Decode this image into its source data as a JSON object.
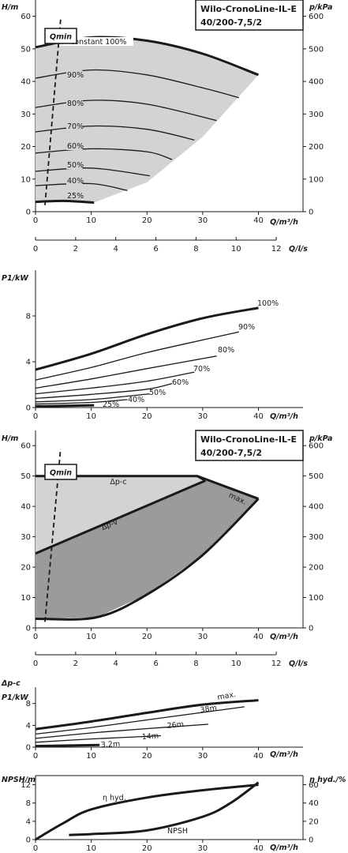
{
  "header": {
    "title_line1": "Wilo-CronoLine-IL-E",
    "title_line2": "40/200-7,5/2"
  },
  "qmin_label": "Qmin",
  "colors": {
    "fill_light": "#d3d3d3",
    "fill_dark": "#9b9b9b",
    "line": "#1a1a1a"
  },
  "chart_data": [
    {
      "type": "line",
      "ylabel": "H/m",
      "ylabel_right": "p/kPa",
      "xlabel": "Q/m³/h",
      "xlabel_secondary": "Q/l/s",
      "xlim": [
        0,
        48
      ],
      "ylim": [
        0,
        65
      ],
      "x_ticks": [
        "0",
        "10",
        "20",
        "30",
        "40"
      ],
      "y_ticks": [
        "0",
        "10",
        "20",
        "30",
        "40",
        "50",
        "60"
      ],
      "y_right_ticks": [
        "0",
        "100",
        "200",
        "300",
        "400",
        "500",
        "600"
      ],
      "x_secondary_ticks": [
        "0",
        "2",
        "4",
        "6",
        "8",
        "10",
        "12"
      ],
      "x_secondary_max": 13.333,
      "operating_range_filled": true,
      "qmin_line": {
        "x": [
          1.7,
          4.5
        ],
        "y": [
          2,
          59
        ]
      },
      "series": [
        {
          "name": "n=constant 100%",
          "x": [
            0,
            10,
            20,
            30,
            40
          ],
          "y": [
            50.5,
            53.5,
            52.5,
            48.5,
            42
          ]
        },
        {
          "name": "90%",
          "x": [
            0,
            10,
            20,
            30,
            36.5
          ],
          "y": [
            41,
            43.5,
            42,
            38,
            35
          ]
        },
        {
          "name": "80%",
          "x": [
            0,
            10,
            20,
            32.5
          ],
          "y": [
            32,
            34.2,
            33,
            28
          ]
        },
        {
          "name": "70%",
          "x": [
            0,
            10,
            20,
            28.5
          ],
          "y": [
            24.5,
            26.3,
            25.3,
            22
          ]
        },
        {
          "name": "60%",
          "x": [
            0,
            10,
            20,
            24.5
          ],
          "y": [
            18,
            19.3,
            18.4,
            16
          ]
        },
        {
          "name": "50%",
          "x": [
            0,
            10,
            20.5
          ],
          "y": [
            12.4,
            13.4,
            11
          ]
        },
        {
          "name": "40%",
          "x": [
            0,
            10,
            16.5
          ],
          "y": [
            8,
            8.6,
            6.5
          ]
        },
        {
          "name": "25%",
          "x": [
            0,
            5,
            10.5
          ],
          "y": [
            3,
            3.3,
            2.8
          ]
        }
      ]
    },
    {
      "type": "line",
      "ylabel": "P1/kW",
      "xlabel": "Q/m³/h",
      "xlim": [
        0,
        48
      ],
      "ylim": [
        0,
        12
      ],
      "x_ticks": [
        "0",
        "10",
        "20",
        "30",
        "40"
      ],
      "y_ticks": [
        "0",
        "4",
        "8"
      ],
      "series": [
        {
          "name": "100%",
          "x": [
            0,
            10,
            20,
            30,
            40
          ],
          "y": [
            3.3,
            4.7,
            6.4,
            7.8,
            8.7
          ]
        },
        {
          "name": "90%",
          "x": [
            0,
            10,
            20,
            30,
            36.5
          ],
          "y": [
            2.4,
            3.5,
            4.8,
            5.9,
            6.6
          ]
        },
        {
          "name": "80%",
          "x": [
            0,
            10,
            20,
            32.5
          ],
          "y": [
            1.7,
            2.5,
            3.4,
            4.5
          ]
        },
        {
          "name": "70%",
          "x": [
            0,
            10,
            20,
            28.5
          ],
          "y": [
            1.2,
            1.7,
            2.3,
            3.1
          ]
        },
        {
          "name": "60%",
          "x": [
            0,
            10,
            20,
            24.5
          ],
          "y": [
            0.8,
            1.15,
            1.6,
            2.1
          ]
        },
        {
          "name": "50%",
          "x": [
            0,
            10,
            20.5
          ],
          "y": [
            0.5,
            0.7,
            1.2
          ]
        },
        {
          "name": "40%",
          "x": [
            0,
            10,
            16.5
          ],
          "y": [
            0.3,
            0.45,
            0.7
          ]
        },
        {
          "name": "25%",
          "x": [
            0,
            10.5
          ],
          "y": [
            0.1,
            0.2
          ]
        }
      ]
    },
    {
      "type": "area",
      "ylabel": "H/m",
      "ylabel_right": "p/kPa",
      "xlabel": "Q/m³/h",
      "xlabel_secondary": "Q/l/s",
      "xlim": [
        0,
        48
      ],
      "ylim": [
        0,
        65
      ],
      "x_ticks": [
        "0",
        "10",
        "20",
        "30",
        "40"
      ],
      "y_ticks": [
        "0",
        "10",
        "20",
        "30",
        "40",
        "50",
        "60"
      ],
      "y_right_ticks": [
        "0",
        "100",
        "200",
        "300",
        "400",
        "500",
        "600"
      ],
      "x_secondary_ticks": [
        "0",
        "2",
        "4",
        "6",
        "8",
        "10",
        "12"
      ],
      "x_secondary_max": 13.333,
      "qmin_line": {
        "x": [
          1.7,
          4.5
        ],
        "y": [
          2,
          59
        ]
      },
      "series": [
        {
          "name": "Δp-c",
          "x": [
            0,
            29,
            30.5
          ],
          "y": [
            50,
            50,
            48.5
          ]
        },
        {
          "name": "Δp-v",
          "x": [
            0,
            30.5
          ],
          "y": [
            24.5,
            48.5
          ]
        },
        {
          "name": "max.",
          "x": [
            29,
            40
          ],
          "y": [
            50,
            42.5
          ]
        },
        {
          "name": "min",
          "x": [
            0,
            11,
            20,
            30,
            40
          ],
          "y": [
            3,
            3.5,
            11,
            24,
            42.5
          ]
        }
      ]
    },
    {
      "type": "line",
      "ylabel": "P1/kW",
      "ylabel_top": "Δp-c",
      "xlabel": "Q/m³/h",
      "xlim": [
        0,
        48
      ],
      "ylim": [
        0,
        11
      ],
      "x_ticks": [
        "0",
        "10",
        "20",
        "30",
        "40"
      ],
      "y_ticks": [
        "0",
        "4",
        "8"
      ],
      "series": [
        {
          "name": "max.",
          "x": [
            0,
            10,
            20,
            30,
            40
          ],
          "y": [
            3.3,
            4.7,
            6.3,
            7.8,
            8.6
          ]
        },
        {
          "name": "38m",
          "x": [
            0,
            10,
            20,
            37.5
          ],
          "y": [
            2.4,
            3.6,
            5,
            7.4
          ]
        },
        {
          "name": "26m",
          "x": [
            0,
            10,
            20,
            31
          ],
          "y": [
            1.6,
            2.6,
            3.4,
            4.2
          ]
        },
        {
          "name": "14m",
          "x": [
            0,
            10,
            22.5
          ],
          "y": [
            0.9,
            1.5,
            2.1
          ]
        },
        {
          "name": "3,2m",
          "x": [
            0,
            11.5
          ],
          "y": [
            0.2,
            0.4
          ]
        }
      ]
    },
    {
      "type": "line",
      "ylabel": "NPSH/m",
      "ylabel_right": "η hyd./%",
      "xlabel": "Q/m³/h",
      "xlim": [
        0,
        48
      ],
      "ylim": [
        0,
        14
      ],
      "x_ticks": [
        "0",
        "10",
        "20",
        "30",
        "40"
      ],
      "y_ticks": [
        "0",
        "4",
        "8",
        "12"
      ],
      "y_right_ticks": [
        "0",
        "20",
        "40",
        "60"
      ],
      "y_right_max": 70,
      "series": [
        {
          "name": "η hyd.",
          "axis": "right",
          "x": [
            0,
            5,
            10,
            20,
            30,
            40
          ],
          "y": [
            0,
            18,
            33,
            46,
            54,
            60
          ]
        },
        {
          "name": "NPSH",
          "axis": "left",
          "x": [
            6,
            10,
            20,
            30,
            35,
            40
          ],
          "y": [
            1,
            1.2,
            2,
            5,
            8,
            12.5
          ]
        }
      ]
    }
  ]
}
